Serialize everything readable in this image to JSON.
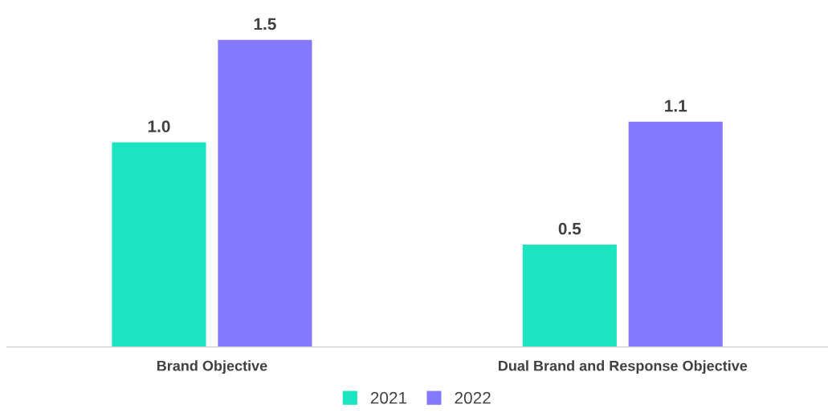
{
  "chart_data": {
    "type": "bar",
    "categories": [
      "Brand Objective",
      "Dual Brand and Response Objective"
    ],
    "series": [
      {
        "name": "2021",
        "color": "#1de4c0",
        "values": [
          1.0,
          0.5
        ],
        "value_labels": [
          "1.0",
          "0.5"
        ]
      },
      {
        "name": "2022",
        "color": "#8478ff",
        "values": [
          1.5,
          1.1
        ],
        "value_labels": [
          "1.5",
          "1.1"
        ]
      }
    ],
    "tick_labels": "x",
    "grid": false,
    "legend": "bottom"
  }
}
